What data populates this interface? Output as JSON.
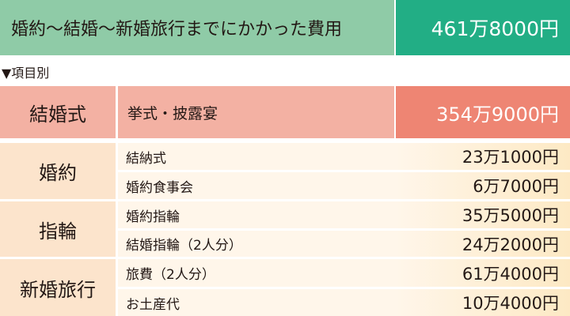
{
  "header": {
    "title": "婚約〜結婚〜新婚旅行までにかかった費用",
    "total": "461万8000円"
  },
  "subheading": "▼項目別",
  "wedding": {
    "category": "結婚式",
    "item": "挙式・披露宴",
    "amount": "354万9000円"
  },
  "groups": [
    {
      "category": "婚約",
      "rows": [
        {
          "item": "結納式",
          "amount": "23万1000円"
        },
        {
          "item": "婚約食事会",
          "amount": "6万7000円"
        }
      ]
    },
    {
      "category": "指輪",
      "rows": [
        {
          "item": "婚約指輪",
          "amount": "35万5000円"
        },
        {
          "item": "結婚指輪（2人分）",
          "amount": "24万2000円"
        }
      ]
    },
    {
      "category": "新婚旅行",
      "rows": [
        {
          "item": "旅費（2人分）",
          "amount": "61万4000円"
        },
        {
          "item": "お土産代",
          "amount": "10万4000円"
        }
      ]
    }
  ],
  "colors": {
    "header_green": "#8fcba7",
    "total_green": "#22ae85",
    "wedding_pink": "#f3b1a3",
    "wedding_amount": "#ee8573",
    "category_peach": "#fce4cc",
    "row_cream": "#fff6ea"
  }
}
